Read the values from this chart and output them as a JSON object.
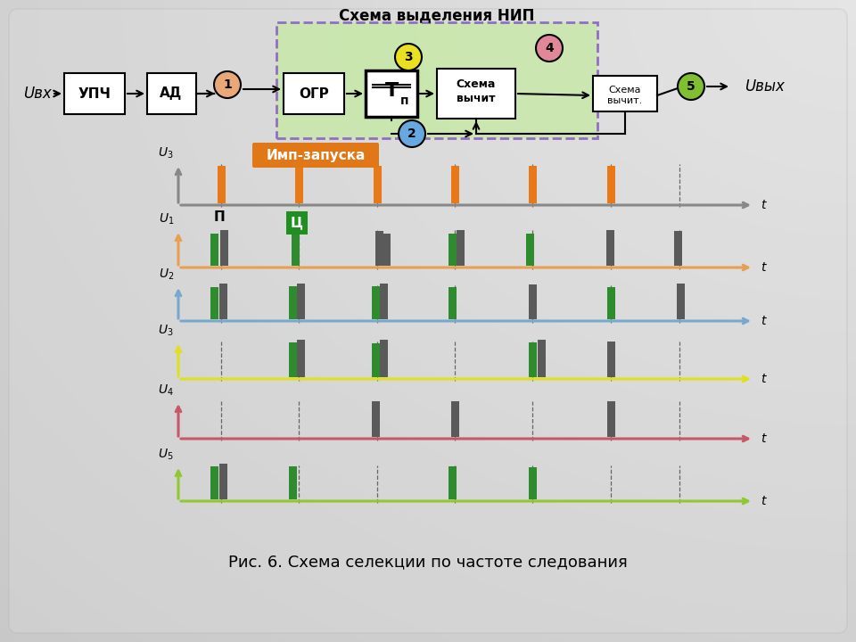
{
  "bg_color": "#c8c8c8",
  "title": "Рис. 6. Схема селекции по частоте следования",
  "nip_label": "Схема выделения НИП",
  "imp_label": "Имп-запуска",
  "green_color": "#2e8b2e",
  "dark_green_color": "#1a6b1a",
  "gray_color": "#5a5a5a",
  "orange_color": "#e87818",
  "orange_line": "#e8a050",
  "blue_line": "#78a8d0",
  "yellow_line": "#e0e020",
  "pink_line": "#c85868",
  "lime_line": "#90c830",
  "nip_bg": "#c8e8a8",
  "nip_border": "#9070c0",
  "circle1_color": "#e8a878",
  "circle2_color": "#68a8e0",
  "circle3_color": "#e8e020",
  "circle4_color": "#e08898",
  "circle5_color": "#80c030"
}
